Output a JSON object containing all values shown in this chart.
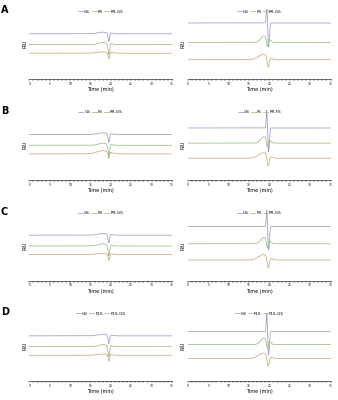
{
  "rows": 4,
  "cols": 2,
  "row_labels": [
    "A",
    "B",
    "C",
    "D"
  ],
  "legend_left": [
    [
      "GS",
      "PS",
      "PR-GS"
    ],
    [
      "GS",
      "FS",
      "PR-GS"
    ],
    [
      "GS",
      "PS",
      "PR-GS"
    ],
    [
      "GS",
      "F1S",
      "F1S-GS"
    ]
  ],
  "legend_right": [
    [
      "GS",
      "PS",
      "PR-GS"
    ],
    [
      "GS",
      "FS",
      "PR-FS"
    ],
    [
      "GS",
      "PS",
      "PR-GS"
    ],
    [
      "GS",
      "F1S",
      "F1S-GS"
    ]
  ],
  "line_colors": [
    "#9999cc",
    "#99bb88",
    "#ccaa77"
  ],
  "xmin": 0,
  "xmax": 35,
  "xlabel": "Time (min)",
  "ylabel": "RIU",
  "background": "#ffffff"
}
